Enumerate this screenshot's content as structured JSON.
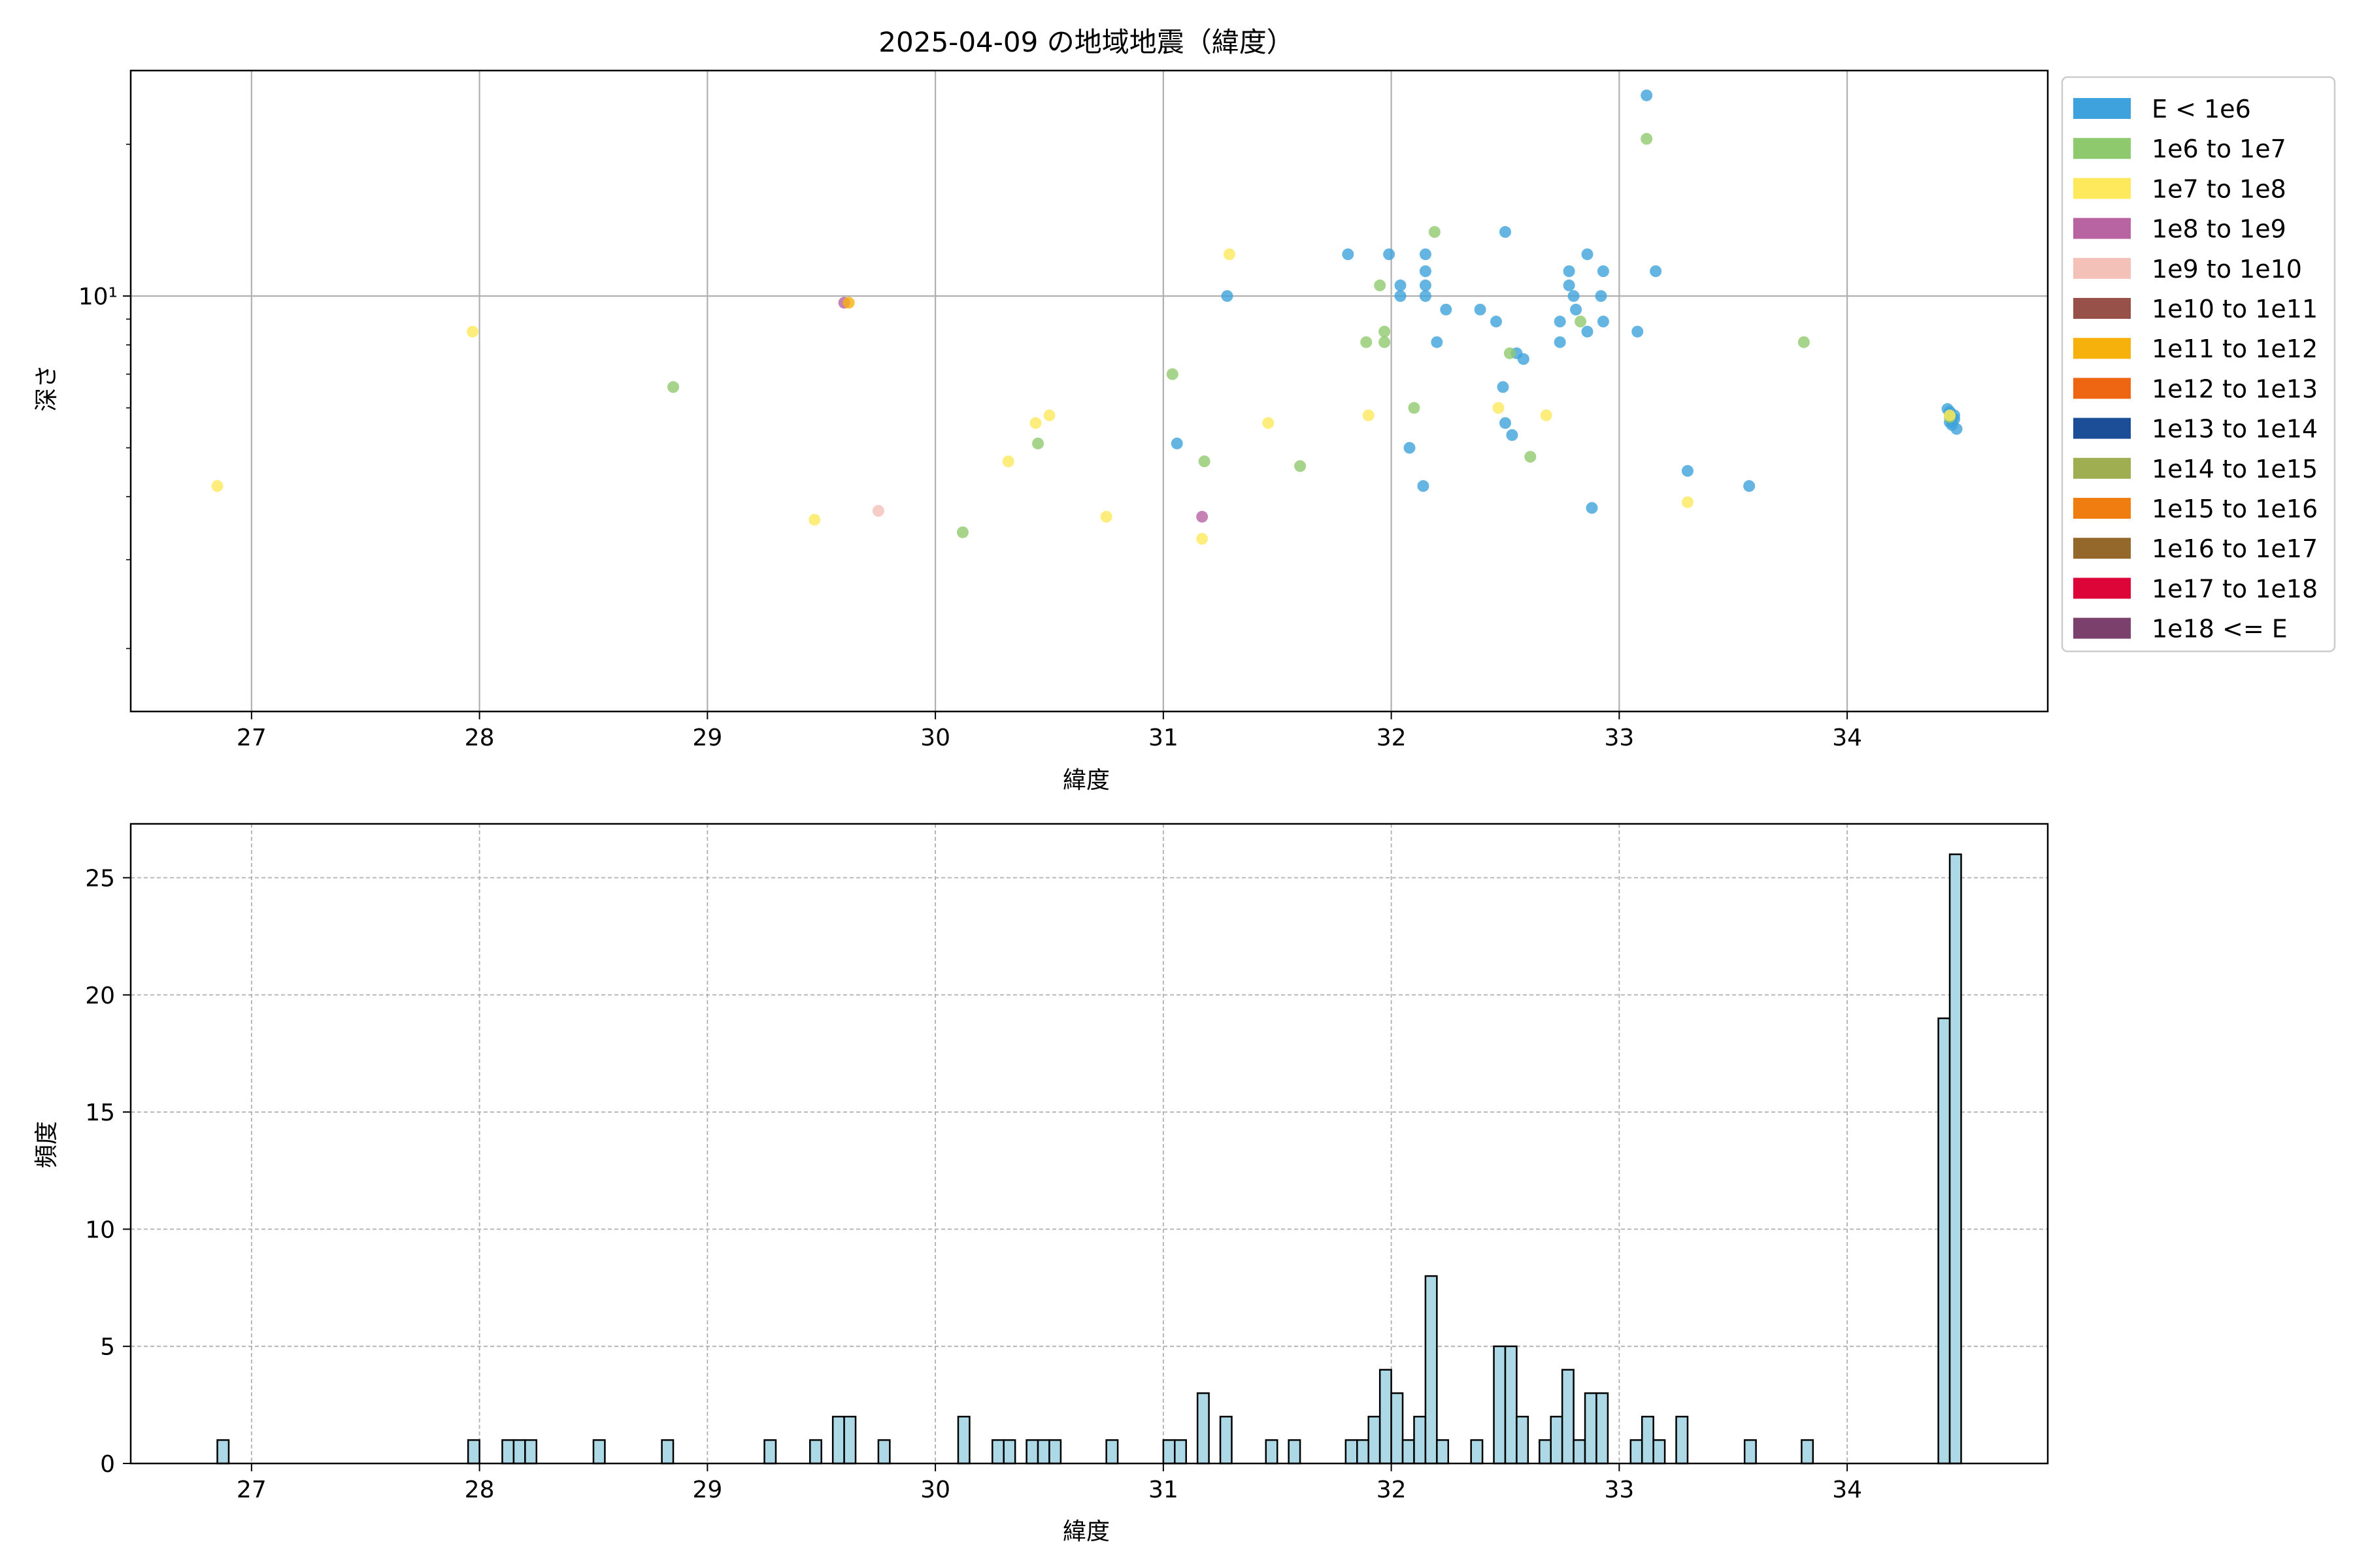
{
  "chart_data": [
    {
      "type": "scatter",
      "title": "2025-04-09 の地域地震（緯度）",
      "xlabel": "緯度",
      "ylabel": "深さ",
      "xlim": [
        26.47,
        34.88
      ],
      "ylim": [
        1.5,
        28
      ],
      "yscale": "log",
      "xticks": [
        27,
        28,
        29,
        30,
        31,
        32,
        33,
        34
      ],
      "yticks": [
        {
          "value": 10,
          "label": "10¹"
        }
      ],
      "grid": true,
      "legend": {
        "placement": "outside-right",
        "entries": [
          {
            "label": "E < 1e6",
            "color": "#3ea2dc"
          },
          {
            "label": "1e6 to 1e7",
            "color": "#8fc96d"
          },
          {
            "label": "1e7 to 1e8",
            "color": "#fde95b"
          },
          {
            "label": "1e8 to 1e9",
            "color": "#b863a2"
          },
          {
            "label": "1e9 to 1e10",
            "color": "#f4c1b8"
          },
          {
            "label": "1e10 to 1e11",
            "color": "#985149"
          },
          {
            "label": "1e11 to 1e12",
            "color": "#f7b10c"
          },
          {
            "label": "1e12 to 1e13",
            "color": "#ee6512"
          },
          {
            "label": "1e13 to 1e14",
            "color": "#1c4e97"
          },
          {
            "label": "1e14 to 1e15",
            "color": "#9fae50"
          },
          {
            "label": "1e15 to 1e16",
            "color": "#ef7d0f"
          },
          {
            "label": "1e16 to 1e17",
            "color": "#93682a"
          },
          {
            "label": "1e17 to 1e18",
            "color": "#dd0538"
          },
          {
            "label": "1e18 <= E",
            "color": "#7c406d"
          }
        ]
      },
      "series": [
        {
          "name": "E < 1e6",
          "color": "#3ea2dc",
          "points": [
            [
              33.12,
              25.0
            ],
            [
              32.5,
              13.4
            ],
            [
              31.81,
              12.1
            ],
            [
              31.99,
              12.1
            ],
            [
              32.15,
              12.1
            ],
            [
              32.86,
              12.1
            ],
            [
              32.15,
              11.2
            ],
            [
              32.78,
              11.2
            ],
            [
              32.93,
              11.2
            ],
            [
              33.16,
              11.2
            ],
            [
              32.04,
              10.5
            ],
            [
              32.15,
              10.5
            ],
            [
              32.78,
              10.5
            ],
            [
              31.28,
              10.0
            ],
            [
              32.04,
              10.0
            ],
            [
              32.15,
              10.0
            ],
            [
              32.8,
              10.0
            ],
            [
              32.92,
              10.0
            ],
            [
              32.24,
              9.4
            ],
            [
              32.39,
              9.4
            ],
            [
              32.81,
              9.4
            ],
            [
              32.46,
              8.9
            ],
            [
              32.74,
              8.9
            ],
            [
              32.93,
              8.9
            ],
            [
              32.86,
              8.5
            ],
            [
              33.08,
              8.5
            ],
            [
              32.2,
              8.1
            ],
            [
              32.74,
              8.1
            ],
            [
              32.55,
              7.7
            ],
            [
              32.58,
              7.5
            ],
            [
              32.49,
              6.6
            ],
            [
              32.5,
              5.6
            ],
            [
              32.53,
              5.3
            ],
            [
              31.06,
              5.1
            ],
            [
              32.08,
              5.0
            ],
            [
              32.14,
              4.2
            ],
            [
              33.3,
              4.5
            ],
            [
              33.57,
              4.2
            ],
            [
              32.88,
              3.8
            ],
            [
              34.44,
              5.97
            ],
            [
              34.45,
              5.85
            ],
            [
              34.46,
              5.75
            ],
            [
              34.47,
              5.7
            ],
            [
              34.45,
              5.62
            ],
            [
              34.46,
              5.55
            ],
            [
              34.48,
              5.45
            ],
            [
              34.45,
              5.9
            ],
            [
              34.47,
              5.8
            ],
            [
              34.46,
              5.65
            ]
          ]
        },
        {
          "name": "1e6 to 1e7",
          "color": "#8fc96d",
          "points": [
            [
              33.12,
              20.5
            ],
            [
              32.19,
              13.4
            ],
            [
              31.95,
              10.5
            ],
            [
              31.97,
              8.5
            ],
            [
              31.89,
              8.1
            ],
            [
              31.97,
              8.1
            ],
            [
              32.83,
              8.9
            ],
            [
              32.52,
              7.7
            ],
            [
              33.81,
              8.1
            ],
            [
              31.04,
              7.0
            ],
            [
              28.85,
              6.6
            ],
            [
              32.1,
              6.0
            ],
            [
              30.45,
              5.1
            ],
            [
              31.18,
              4.7
            ],
            [
              31.6,
              4.6
            ],
            [
              32.61,
              4.8
            ],
            [
              30.12,
              3.4
            ],
            [
              34.45,
              5.75
            ]
          ]
        },
        {
          "name": "1e7 to 1e8",
          "color": "#fde95b",
          "points": [
            [
              31.29,
              12.1
            ],
            [
              27.97,
              8.5
            ],
            [
              26.85,
              4.2
            ],
            [
              30.5,
              5.8
            ],
            [
              30.44,
              5.6
            ],
            [
              30.32,
              4.7
            ],
            [
              31.46,
              5.6
            ],
            [
              31.9,
              5.8
            ],
            [
              32.47,
              6.0
            ],
            [
              32.68,
              5.8
            ],
            [
              29.47,
              3.6
            ],
            [
              30.75,
              3.65
            ],
            [
              31.17,
              3.3
            ],
            [
              33.3,
              3.9
            ],
            [
              34.45,
              5.8
            ]
          ]
        },
        {
          "name": "1e8 to 1e9",
          "color": "#b863a2",
          "points": [
            [
              29.6,
              9.7
            ],
            [
              31.17,
              3.65
            ]
          ]
        },
        {
          "name": "1e9 to 1e10",
          "color": "#f4c1b8",
          "points": [
            [
              29.75,
              3.75
            ]
          ]
        },
        {
          "name": "1e11 to 1e12",
          "color": "#f7b10c",
          "points": [
            [
              29.62,
              9.7
            ]
          ]
        }
      ]
    },
    {
      "type": "bar",
      "title": "",
      "xlabel": "緯度",
      "ylabel": "頻度",
      "xlim": [
        26.47,
        34.88
      ],
      "ylim": [
        0,
        27.3
      ],
      "xticks": [
        27,
        28,
        29,
        30,
        31,
        32,
        33,
        34
      ],
      "yticks": [
        0,
        5,
        10,
        15,
        20,
        25
      ],
      "grid": true,
      "bar_color": "#add8e6",
      "bin_width": 0.05,
      "bins": [
        [
          26.85,
          1
        ],
        [
          27.95,
          1
        ],
        [
          28.1,
          1
        ],
        [
          28.15,
          1
        ],
        [
          28.2,
          1
        ],
        [
          28.5,
          1
        ],
        [
          28.8,
          1
        ],
        [
          29.25,
          1
        ],
        [
          29.45,
          1
        ],
        [
          29.55,
          2
        ],
        [
          29.6,
          2
        ],
        [
          29.75,
          1
        ],
        [
          30.1,
          2
        ],
        [
          30.25,
          1
        ],
        [
          30.3,
          1
        ],
        [
          30.4,
          1
        ],
        [
          30.45,
          1
        ],
        [
          30.5,
          1
        ],
        [
          30.75,
          1
        ],
        [
          31.0,
          1
        ],
        [
          31.05,
          1
        ],
        [
          31.15,
          3
        ],
        [
          31.25,
          2
        ],
        [
          31.45,
          1
        ],
        [
          31.55,
          1
        ],
        [
          31.8,
          1
        ],
        [
          31.85,
          1
        ],
        [
          31.9,
          2
        ],
        [
          31.95,
          4
        ],
        [
          32.0,
          3
        ],
        [
          32.05,
          1
        ],
        [
          32.1,
          2
        ],
        [
          32.15,
          8
        ],
        [
          32.2,
          1
        ],
        [
          32.35,
          1
        ],
        [
          32.45,
          5
        ],
        [
          32.5,
          5
        ],
        [
          32.55,
          2
        ],
        [
          32.65,
          1
        ],
        [
          32.7,
          2
        ],
        [
          32.75,
          4
        ],
        [
          32.8,
          1
        ],
        [
          32.85,
          3
        ],
        [
          32.9,
          3
        ],
        [
          33.05,
          1
        ],
        [
          33.1,
          2
        ],
        [
          33.15,
          1
        ],
        [
          33.25,
          2
        ],
        [
          33.55,
          1
        ],
        [
          33.8,
          1
        ],
        [
          34.4,
          19
        ],
        [
          34.45,
          26
        ]
      ]
    }
  ]
}
